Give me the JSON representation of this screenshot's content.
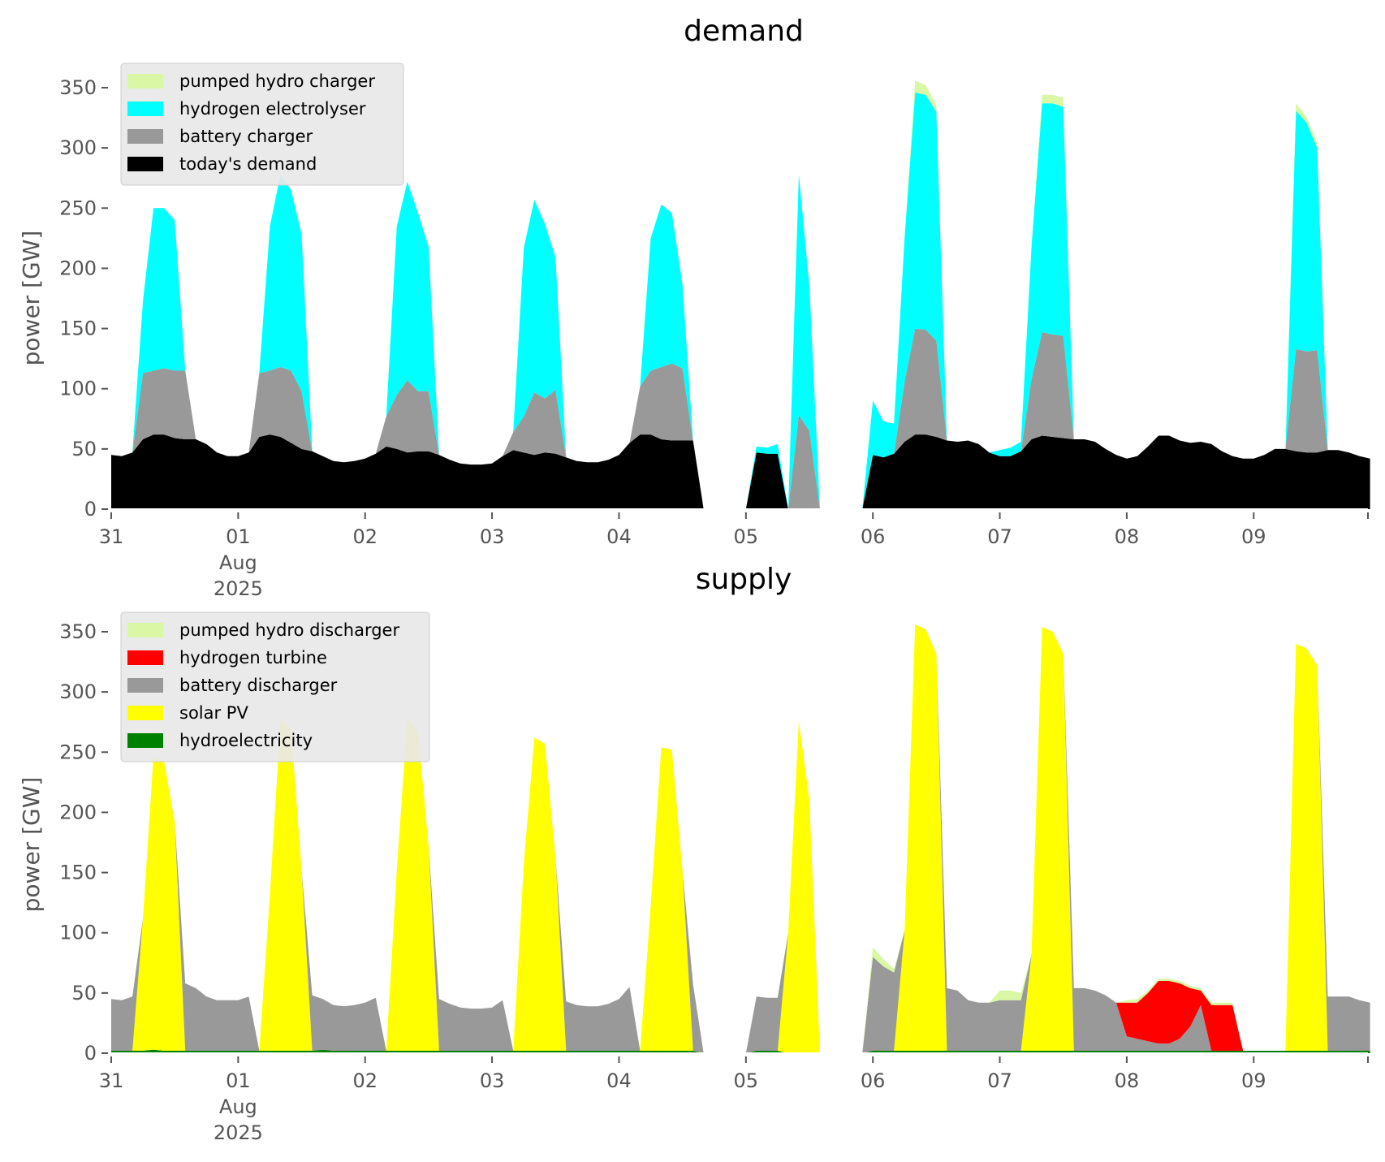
{
  "chart_data": [
    {
      "type": "area",
      "stacked": true,
      "title": "demand",
      "ylabel": "power [GW]",
      "xlabel": "",
      "ylim": [
        0,
        370
      ],
      "xlim_days": [
        0,
        9.9
      ],
      "grid": false,
      "legend_position": "top-left",
      "x_tick_labels": [
        "31",
        "01",
        "02",
        "03",
        "04",
        "05",
        "06",
        "07",
        "08",
        "09"
      ],
      "x_tick_sublabel": [
        "Aug",
        "2025"
      ],
      "y_ticks": [
        0,
        50,
        100,
        150,
        200,
        250,
        300,
        350
      ],
      "sample_interval_hours": 2,
      "x_start": "2025-07-31 00:00",
      "legend": [
        "pumped hydro charger",
        "hydrogen electrolyser",
        "battery charger",
        "today's demand"
      ],
      "series": [
        {
          "name": "today's demand",
          "color": "#000000",
          "values": [
            45,
            44,
            47,
            58,
            62,
            62,
            59,
            58,
            58,
            54,
            47,
            44,
            44,
            47,
            60,
            62,
            60,
            55,
            50,
            48,
            44,
            40,
            39,
            40,
            42,
            46,
            52,
            50,
            47,
            48,
            48,
            45,
            41,
            38,
            37,
            37,
            38,
            44,
            49,
            47,
            45,
            47,
            46,
            43,
            40,
            39,
            39,
            41,
            45,
            55,
            62,
            62,
            58,
            57,
            57,
            57,
            0,
            0,
            0,
            0,
            0,
            47,
            46,
            46,
            0,
            0,
            0,
            0,
            0,
            0,
            0,
            0,
            45,
            43,
            46,
            56,
            62,
            62,
            60,
            57,
            56,
            57,
            54,
            47,
            44,
            44,
            48,
            58,
            61,
            60,
            59,
            58,
            58,
            56,
            50,
            45,
            42,
            44,
            52,
            61,
            61,
            57,
            55,
            56,
            54,
            48,
            44,
            42,
            42,
            45,
            50,
            50,
            48,
            47,
            47,
            49,
            49,
            47,
            44,
            42
          ]
        },
        {
          "name": "battery charger",
          "color": "#999999",
          "values": [
            0,
            0,
            0,
            55,
            53,
            55,
            56,
            57,
            0,
            0,
            0,
            0,
            0,
            0,
            53,
            53,
            58,
            60,
            48,
            0,
            0,
            0,
            0,
            0,
            0,
            0,
            25,
            45,
            60,
            50,
            50,
            0,
            0,
            0,
            0,
            0,
            0,
            0,
            15,
            30,
            52,
            45,
            53,
            0,
            0,
            0,
            0,
            0,
            0,
            0,
            40,
            53,
            60,
            64,
            60,
            0,
            0,
            0,
            0,
            0,
            0,
            0,
            0,
            0,
            0,
            78,
            65,
            0,
            0,
            0,
            0,
            0,
            0,
            0,
            0,
            50,
            88,
            87,
            80,
            0,
            0,
            0,
            0,
            0,
            0,
            0,
            0,
            50,
            86,
            85,
            85,
            0,
            0,
            0,
            0,
            0,
            0,
            0,
            0,
            0,
            0,
            0,
            0,
            0,
            0,
            0,
            0,
            0,
            0,
            0,
            0,
            0,
            85,
            84,
            85,
            0,
            0,
            0,
            0,
            0
          ]
        },
        {
          "name": "hydrogen electrolyser",
          "color": "#00ffff",
          "values": [
            0,
            0,
            0,
            60,
            135,
            133,
            125,
            0,
            0,
            0,
            0,
            0,
            0,
            0,
            0,
            120,
            160,
            150,
            130,
            0,
            0,
            0,
            0,
            0,
            0,
            0,
            0,
            140,
            165,
            148,
            120,
            0,
            0,
            0,
            0,
            0,
            0,
            0,
            0,
            140,
            160,
            145,
            110,
            0,
            0,
            0,
            0,
            0,
            0,
            0,
            0,
            110,
            135,
            125,
            70,
            0,
            0,
            0,
            0,
            0,
            0,
            5,
            5,
            8,
            0,
            200,
            120,
            0,
            0,
            0,
            0,
            0,
            45,
            30,
            25,
            120,
            196,
            195,
            190,
            0,
            0,
            0,
            0,
            0,
            5,
            7,
            8,
            110,
            190,
            192,
            190,
            0,
            0,
            0,
            0,
            0,
            0,
            0,
            0,
            0,
            0,
            0,
            0,
            0,
            0,
            0,
            0,
            0,
            0,
            0,
            0,
            0,
            198,
            190,
            168,
            0,
            0,
            0,
            0,
            0
          ]
        },
        {
          "name": "pumped hydro charger",
          "color": "#d9f7a5",
          "values": [
            0,
            0,
            0,
            0,
            0,
            0,
            0,
            0,
            0,
            0,
            0,
            0,
            0,
            0,
            0,
            0,
            0,
            0,
            0,
            0,
            0,
            0,
            0,
            0,
            0,
            0,
            0,
            0,
            0,
            0,
            0,
            0,
            0,
            0,
            0,
            0,
            0,
            0,
            0,
            0,
            0,
            0,
            0,
            0,
            0,
            0,
            0,
            0,
            0,
            0,
            0,
            0,
            0,
            0,
            0,
            0,
            0,
            0,
            0,
            0,
            0,
            0,
            0,
            0,
            0,
            0,
            0,
            0,
            0,
            0,
            0,
            0,
            0,
            0,
            0,
            0,
            10,
            8,
            6,
            0,
            0,
            0,
            0,
            0,
            0,
            0,
            0,
            0,
            7,
            7,
            8,
            0,
            0,
            0,
            0,
            0,
            0,
            0,
            0,
            0,
            0,
            0,
            0,
            0,
            0,
            0,
            0,
            0,
            0,
            0,
            0,
            0,
            6,
            5,
            5,
            0,
            0,
            0,
            0,
            0
          ]
        }
      ]
    },
    {
      "type": "area",
      "stacked": true,
      "title": "supply",
      "ylabel": "power [GW]",
      "xlabel": "",
      "ylim": [
        0,
        370
      ],
      "xlim_days": [
        0,
        9.9
      ],
      "grid": false,
      "legend_position": "top-left",
      "x_tick_labels": [
        "31",
        "01",
        "02",
        "03",
        "04",
        "05",
        "06",
        "07",
        "08",
        "09"
      ],
      "x_tick_sublabel": [
        "Aug",
        "2025"
      ],
      "y_ticks": [
        0,
        50,
        100,
        150,
        200,
        250,
        300,
        350
      ],
      "sample_interval_hours": 2,
      "x_start": "2025-07-31 00:00",
      "legend": [
        "pumped hydro discharger",
        "hydrogen turbine",
        "battery discharger",
        "solar PV",
        "hydroelectricity"
      ],
      "series": [
        {
          "name": "hydroelectricity",
          "color": "#008000",
          "values": [
            2,
            2,
            2,
            2,
            3,
            2,
            2,
            2,
            2,
            2,
            2,
            2,
            2,
            2,
            2,
            2,
            2,
            2,
            2,
            2,
            3,
            2,
            2,
            2,
            2,
            2,
            2,
            2,
            2,
            2,
            2,
            2,
            2,
            2,
            2,
            2,
            2,
            2,
            2,
            2,
            2,
            2,
            2,
            2,
            2,
            2,
            2,
            2,
            2,
            2,
            2,
            2,
            2,
            2,
            2,
            2,
            0,
            0,
            0,
            0,
            0,
            2,
            2,
            2,
            0,
            0,
            0,
            0,
            0,
            0,
            0,
            0,
            2,
            2,
            2,
            2,
            2,
            2,
            2,
            2,
            2,
            2,
            2,
            2,
            2,
            2,
            2,
            2,
            2,
            2,
            2,
            2,
            2,
            2,
            2,
            2,
            2,
            2,
            2,
            2,
            2,
            2,
            2,
            2,
            2,
            2,
            2,
            2,
            2,
            2,
            2,
            2,
            2,
            2,
            2,
            2,
            2,
            2,
            2,
            2
          ]
        },
        {
          "name": "solar PV",
          "color": "#ffff00",
          "values": [
            0,
            0,
            0,
            110,
            244,
            240,
            190,
            0,
            0,
            0,
            0,
            0,
            0,
            0,
            0,
            130,
            274,
            268,
            150,
            0,
            0,
            0,
            0,
            0,
            0,
            0,
            0,
            150,
            276,
            265,
            170,
            0,
            0,
            0,
            0,
            0,
            0,
            0,
            0,
            155,
            260,
            255,
            160,
            0,
            0,
            0,
            0,
            0,
            0,
            0,
            0,
            120,
            252,
            250,
            150,
            0,
            0,
            0,
            0,
            0,
            0,
            0,
            0,
            0,
            100,
            276,
            210,
            0,
            0,
            0,
            0,
            0,
            0,
            0,
            0,
            100,
            354,
            350,
            330,
            0,
            0,
            0,
            0,
            0,
            0,
            0,
            0,
            80,
            352,
            348,
            330,
            0,
            0,
            0,
            0,
            0,
            0,
            0,
            0,
            0,
            0,
            0,
            0,
            0,
            0,
            0,
            0,
            0,
            0,
            0,
            0,
            0,
            338,
            334,
            320,
            0,
            0,
            0,
            0,
            0
          ]
        },
        {
          "name": "battery discharger",
          "color": "#999999",
          "values": [
            43,
            42,
            45,
            0,
            0,
            0,
            0,
            56,
            52,
            45,
            42,
            42,
            42,
            45,
            0,
            0,
            0,
            0,
            0,
            46,
            42,
            38,
            37,
            38,
            40,
            44,
            0,
            0,
            0,
            0,
            0,
            43,
            39,
            36,
            35,
            35,
            36,
            42,
            0,
            0,
            0,
            0,
            0,
            41,
            38,
            37,
            37,
            39,
            43,
            53,
            0,
            0,
            0,
            0,
            0,
            55,
            0,
            0,
            0,
            0,
            0,
            45,
            44,
            44,
            0,
            0,
            0,
            0,
            0,
            0,
            0,
            0,
            78,
            70,
            65,
            0,
            0,
            0,
            0,
            52,
            50,
            42,
            40,
            40,
            42,
            42,
            42,
            0,
            0,
            0,
            0,
            52,
            52,
            50,
            46,
            40,
            12,
            10,
            8,
            6,
            6,
            10,
            20,
            38,
            0,
            0,
            0,
            0,
            0,
            0,
            0,
            0,
            0,
            0,
            0,
            45,
            45,
            45,
            42,
            40
          ]
        },
        {
          "name": "hydrogen turbine",
          "color": "#ff0000",
          "values": [
            0,
            0,
            0,
            0,
            0,
            0,
            0,
            0,
            0,
            0,
            0,
            0,
            0,
            0,
            0,
            0,
            0,
            0,
            0,
            0,
            0,
            0,
            0,
            0,
            0,
            0,
            0,
            0,
            0,
            0,
            0,
            0,
            0,
            0,
            0,
            0,
            0,
            0,
            0,
            0,
            0,
            0,
            0,
            0,
            0,
            0,
            0,
            0,
            0,
            0,
            0,
            0,
            0,
            0,
            0,
            0,
            0,
            0,
            0,
            0,
            0,
            0,
            0,
            0,
            0,
            0,
            0,
            0,
            0,
            0,
            0,
            0,
            0,
            0,
            0,
            0,
            0,
            0,
            0,
            0,
            0,
            0,
            0,
            0,
            0,
            0,
            0,
            0,
            0,
            0,
            0,
            0,
            0,
            0,
            0,
            0,
            28,
            30,
            40,
            52,
            52,
            46,
            32,
            12,
            38,
            38,
            38,
            0,
            0,
            0,
            0,
            0,
            0,
            0,
            0,
            0,
            0,
            0,
            0,
            0
          ]
        },
        {
          "name": "pumped hydro discharger",
          "color": "#d9f7a5",
          "values": [
            0,
            0,
            0,
            0,
            0,
            0,
            0,
            0,
            0,
            0,
            0,
            0,
            0,
            0,
            0,
            0,
            0,
            0,
            0,
            0,
            0,
            0,
            0,
            0,
            0,
            0,
            0,
            0,
            0,
            0,
            0,
            0,
            0,
            0,
            0,
            0,
            0,
            0,
            0,
            0,
            0,
            0,
            0,
            0,
            0,
            0,
            0,
            0,
            0,
            0,
            0,
            0,
            0,
            0,
            0,
            0,
            0,
            0,
            0,
            0,
            0,
            0,
            0,
            0,
            0,
            0,
            0,
            0,
            0,
            0,
            0,
            0,
            8,
            6,
            3,
            0,
            0,
            0,
            0,
            0,
            0,
            0,
            0,
            0,
            8,
            8,
            6,
            0,
            0,
            0,
            0,
            0,
            0,
            0,
            0,
            0,
            2,
            3,
            2,
            2,
            2,
            2,
            2,
            2,
            2,
            2,
            2,
            0,
            0,
            0,
            0,
            0,
            0,
            0,
            0,
            0,
            0,
            0,
            0,
            0
          ]
        }
      ]
    }
  ]
}
